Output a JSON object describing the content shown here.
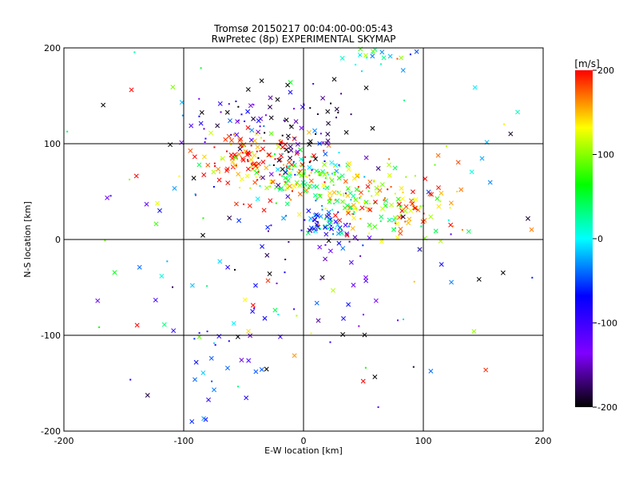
{
  "chart_data": {
    "type": "scatter",
    "title": "Tromsø 20150217 00:04:00-00:05:43",
    "subtitle": "RwPretec (8p) EXPERIMENTAL SKYMAP",
    "xlabel": "E-W location [km]",
    "ylabel": "N-S location [km]",
    "xlim": [
      -200,
      200
    ],
    "ylim": [
      -200,
      200
    ],
    "x_ticks": [
      -200,
      -100,
      0,
      100,
      200
    ],
    "y_ticks": [
      -200,
      -100,
      0,
      100,
      200
    ],
    "x_tick_labels": [
      "-200",
      "-100",
      "0",
      "100",
      "200"
    ],
    "y_tick_labels": [
      "-200",
      "-100",
      "0",
      "100",
      "200"
    ],
    "grid": true,
    "colorbar": {
      "label": "[m/s]",
      "range": [
        -200,
        200
      ],
      "ticks": [
        200,
        100,
        0,
        -100,
        -200
      ],
      "tick_labels": [
        "200",
        "100",
        "0",
        "-100",
        "-200"
      ],
      "colors": [
        "#000000",
        "#8000ff",
        "#0000ff",
        "#00ffff",
        "#00ff00",
        "#ffff00",
        "#ff0000"
      ]
    },
    "markers": [
      "cross",
      "dot"
    ],
    "clusters": [
      {
        "x": -50,
        "y": 85,
        "value": 190,
        "spread": [
          18,
          12
        ],
        "count": 80
      },
      {
        "x": -20,
        "y": 70,
        "value": 170,
        "spread": [
          30,
          20
        ],
        "count": 60
      },
      {
        "x": 5,
        "y": 62,
        "value": 60,
        "spread": [
          22,
          12
        ],
        "count": 90
      },
      {
        "x": 35,
        "y": 50,
        "value": 100,
        "spread": [
          25,
          15
        ],
        "count": 70
      },
      {
        "x": 70,
        "y": 40,
        "value": 170,
        "spread": [
          30,
          18
        ],
        "count": 70
      },
      {
        "x": 90,
        "y": 20,
        "value": 120,
        "spread": [
          15,
          10
        ],
        "count": 35
      },
      {
        "x": 20,
        "y": 15,
        "value": -60,
        "spread": [
          12,
          8
        ],
        "count": 60
      },
      {
        "x": -5,
        "y": 95,
        "value": -200,
        "spread": [
          20,
          15
        ],
        "count": 35
      },
      {
        "x": -60,
        "y": 130,
        "value": -120,
        "spread": [
          30,
          15
        ],
        "count": 40
      },
      {
        "x": 60,
        "y": 190,
        "value": 10,
        "spread": [
          15,
          8
        ],
        "count": 20
      },
      {
        "x": 0,
        "y": -40,
        "value": -130,
        "spread": [
          40,
          40
        ],
        "count": 40
      },
      {
        "x": -60,
        "y": -130,
        "value": -70,
        "spread": [
          30,
          30
        ],
        "count": 25
      },
      {
        "x": 0,
        "y": 30,
        "value": 0,
        "spread": [
          150,
          120
        ],
        "count": 180
      },
      {
        "x": 10,
        "y": 140,
        "value": -170,
        "spread": [
          30,
          15
        ],
        "count": 25
      }
    ]
  }
}
